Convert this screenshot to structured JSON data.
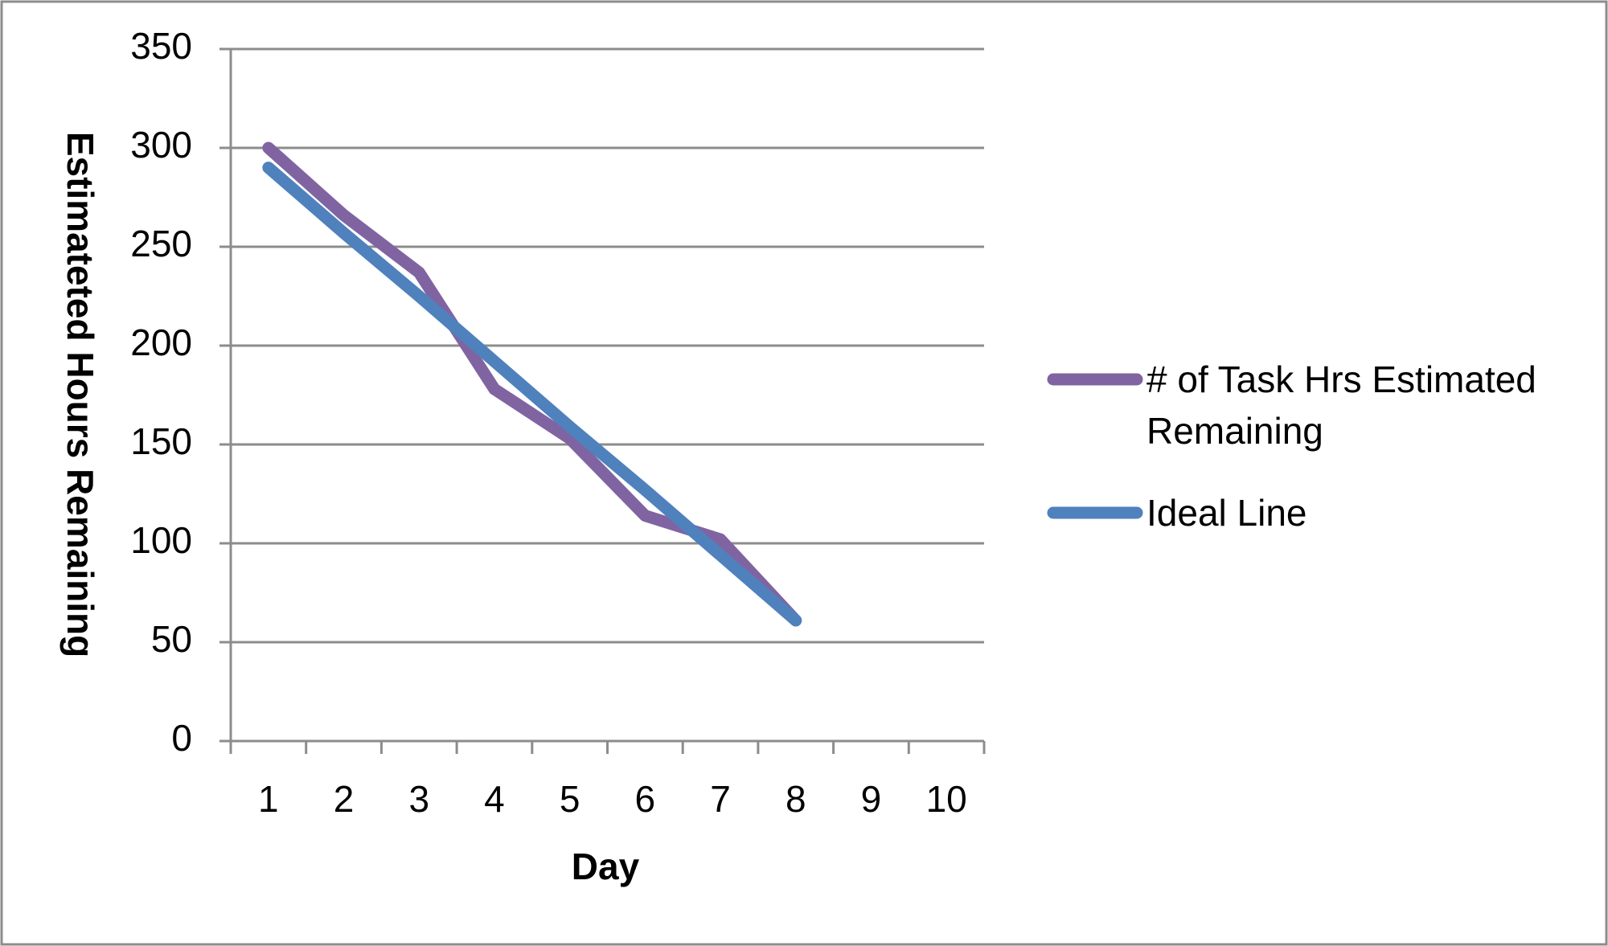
{
  "chart_data": {
    "type": "line",
    "x_label": "Day",
    "y_label": "Estimateted Hours Remaining",
    "categories": [
      "1",
      "2",
      "3",
      "4",
      "5",
      "6",
      "7",
      "8",
      "9",
      "10"
    ],
    "series": [
      {
        "name": "# of Task Hrs Estimated Remaining",
        "color": "#8064a2",
        "values": [
          300,
          266,
          237,
          178,
          153,
          114,
          102,
          61,
          null,
          null
        ]
      },
      {
        "name": "Ideal Line",
        "color": "#4f81bd",
        "values": [
          290,
          257,
          225,
          192,
          159,
          127,
          94,
          61,
          null,
          null
        ]
      }
    ],
    "ylim": [
      0,
      350
    ],
    "yticks": [
      0,
      50,
      100,
      150,
      200,
      250,
      300,
      350
    ],
    "grid": true,
    "legend": "right"
  }
}
